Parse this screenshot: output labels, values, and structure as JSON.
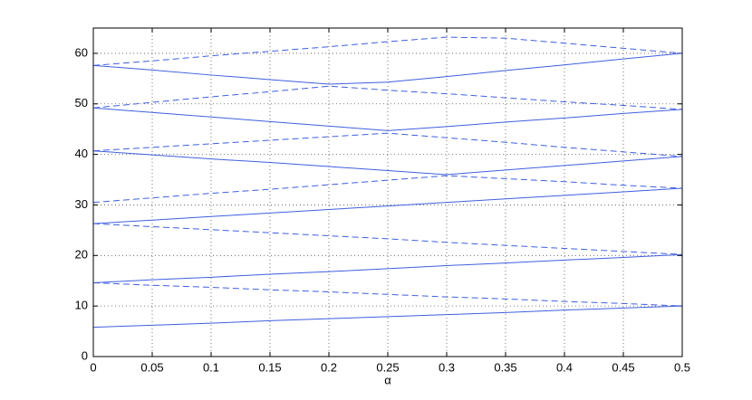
{
  "chart_data": {
    "type": "line",
    "xlabel": "α",
    "x": [
      0,
      0.05,
      0.1,
      0.15,
      0.2,
      0.25,
      0.3,
      0.35,
      0.4,
      0.45,
      0.5
    ],
    "series": [
      {
        "color": "#3f5fe0",
        "dashed": false,
        "values": [
          5.8,
          6.2,
          6.6,
          7.1,
          7.5,
          7.9,
          8.3,
          8.7,
          9.2,
          9.6,
          10.0
        ]
      },
      {
        "color": "#3f5fe0",
        "dashed": false,
        "values": [
          14.6,
          15.2,
          15.7,
          16.3,
          16.8,
          17.4,
          18.0,
          18.5,
          19.1,
          19.6,
          20.2
        ]
      },
      {
        "color": "#3f5fe0",
        "dashed": false,
        "values": [
          26.3,
          27.0,
          27.7,
          28.4,
          29.1,
          29.8,
          30.5,
          31.2,
          31.9,
          32.6,
          33.3
        ]
      },
      {
        "color": "#3f5fe0",
        "dashed": false,
        "values": [
          40.7,
          39.9,
          39.1,
          38.4,
          37.6,
          36.8,
          36.0,
          36.9,
          37.8,
          38.7,
          39.6
        ]
      },
      {
        "color": "#3f5fe0",
        "dashed": false,
        "values": [
          49.2,
          48.3,
          47.4,
          46.5,
          45.6,
          44.7,
          45.5,
          46.4,
          47.2,
          48.1,
          48.9
        ]
      },
      {
        "color": "#3f5fe0",
        "dashed": false,
        "values": [
          57.6,
          56.7,
          55.7,
          54.8,
          53.9,
          54.3,
          55.4,
          56.6,
          57.7,
          58.9,
          60.0
        ]
      },
      {
        "color": "#3f5fe0",
        "dashed": true,
        "values": [
          14.6,
          14.1,
          13.7,
          13.2,
          12.8,
          12.3,
          11.8,
          11.4,
          10.9,
          10.5,
          10.0
        ]
      },
      {
        "color": "#3f5fe0",
        "dashed": true,
        "values": [
          26.3,
          25.7,
          25.1,
          24.5,
          23.9,
          23.3,
          22.6,
          22.0,
          21.4,
          20.8,
          20.2
        ]
      },
      {
        "color": "#3f5fe0",
        "dashed": true,
        "values": [
          30.5,
          31.4,
          32.3,
          33.1,
          34.0,
          34.9,
          35.8,
          35.2,
          34.6,
          33.9,
          33.3
        ]
      },
      {
        "color": "#3f5fe0",
        "dashed": true,
        "values": [
          40.7,
          41.4,
          42.1,
          42.8,
          43.5,
          44.2,
          43.3,
          42.4,
          41.4,
          40.5,
          39.6
        ]
      },
      {
        "color": "#3f5fe0",
        "dashed": true,
        "values": [
          49.2,
          50.3,
          51.4,
          52.4,
          53.5,
          52.7,
          52.0,
          51.2,
          50.4,
          49.7,
          48.9
        ]
      },
      {
        "color": "#3f5fe0",
        "dashed": true,
        "values": [
          57.6,
          58.5,
          59.5,
          60.4,
          61.3,
          62.3,
          63.2,
          63.0,
          62.0,
          61.0,
          60.0
        ]
      }
    ],
    "xlim": [
      0,
      0.5
    ],
    "xticks": [
      0,
      0.05,
      0.1,
      0.15,
      0.2,
      0.25,
      0.3,
      0.35,
      0.4,
      0.45,
      0.5
    ],
    "ylim": [
      0,
      65
    ],
    "yticks": [
      0,
      10,
      20,
      30,
      40,
      50,
      60
    ],
    "grid": true
  }
}
